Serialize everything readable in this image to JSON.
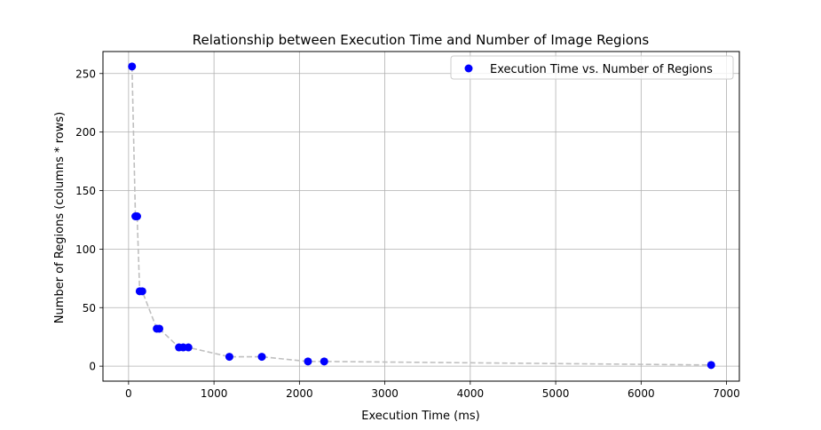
{
  "chart_data": {
    "type": "scatter",
    "title": "Relationship between Execution Time and Number of Image Regions",
    "xlabel": "Execution Time (ms)",
    "ylabel": "Number of Regions (columns * rows)",
    "xlim": [
      -300,
      7150
    ],
    "ylim": [
      -12.8,
      268.8
    ],
    "xticks": [
      0,
      1000,
      2000,
      3000,
      4000,
      5000,
      6000,
      7000
    ],
    "yticks": [
      0,
      50,
      100,
      150,
      200,
      250
    ],
    "grid": true,
    "legend_position": "top-right",
    "series": [
      {
        "name": "Execution Time vs. Number of Regions",
        "color": "#0000ff",
        "marker": "circle",
        "x": [
          40,
          80,
          100,
          130,
          160,
          330,
          360,
          590,
          640,
          700,
          1180,
          1560,
          2100,
          2290,
          6820
        ],
        "y": [
          256,
          128,
          128,
          64,
          64,
          32,
          32,
          16,
          16,
          16,
          8,
          8,
          4,
          4,
          1
        ]
      }
    ],
    "connector_line": {
      "color": "#bfbfbf",
      "style": "dashed"
    }
  }
}
